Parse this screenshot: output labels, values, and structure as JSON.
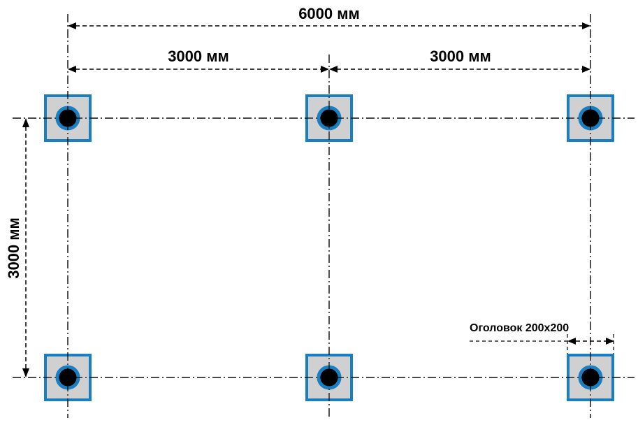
{
  "dimensions": {
    "total_width": "6000 мм",
    "span_left": "3000 мм",
    "span_right": "3000 мм",
    "height": "3000 мм"
  },
  "callout": {
    "cap_label": "Оголовок 200x200"
  },
  "colors": {
    "cap_fill": "#d0d0d0",
    "cap_border": "#1a7fc1",
    "pipe_ring": "#1a7fc1",
    "pipe_core": "#000000",
    "lines": "#000000"
  },
  "piles": [
    {
      "row": "top",
      "col": "left"
    },
    {
      "row": "top",
      "col": "middle"
    },
    {
      "row": "top",
      "col": "right"
    },
    {
      "row": "bottom",
      "col": "left"
    },
    {
      "row": "bottom",
      "col": "middle"
    },
    {
      "row": "bottom",
      "col": "right"
    }
  ]
}
